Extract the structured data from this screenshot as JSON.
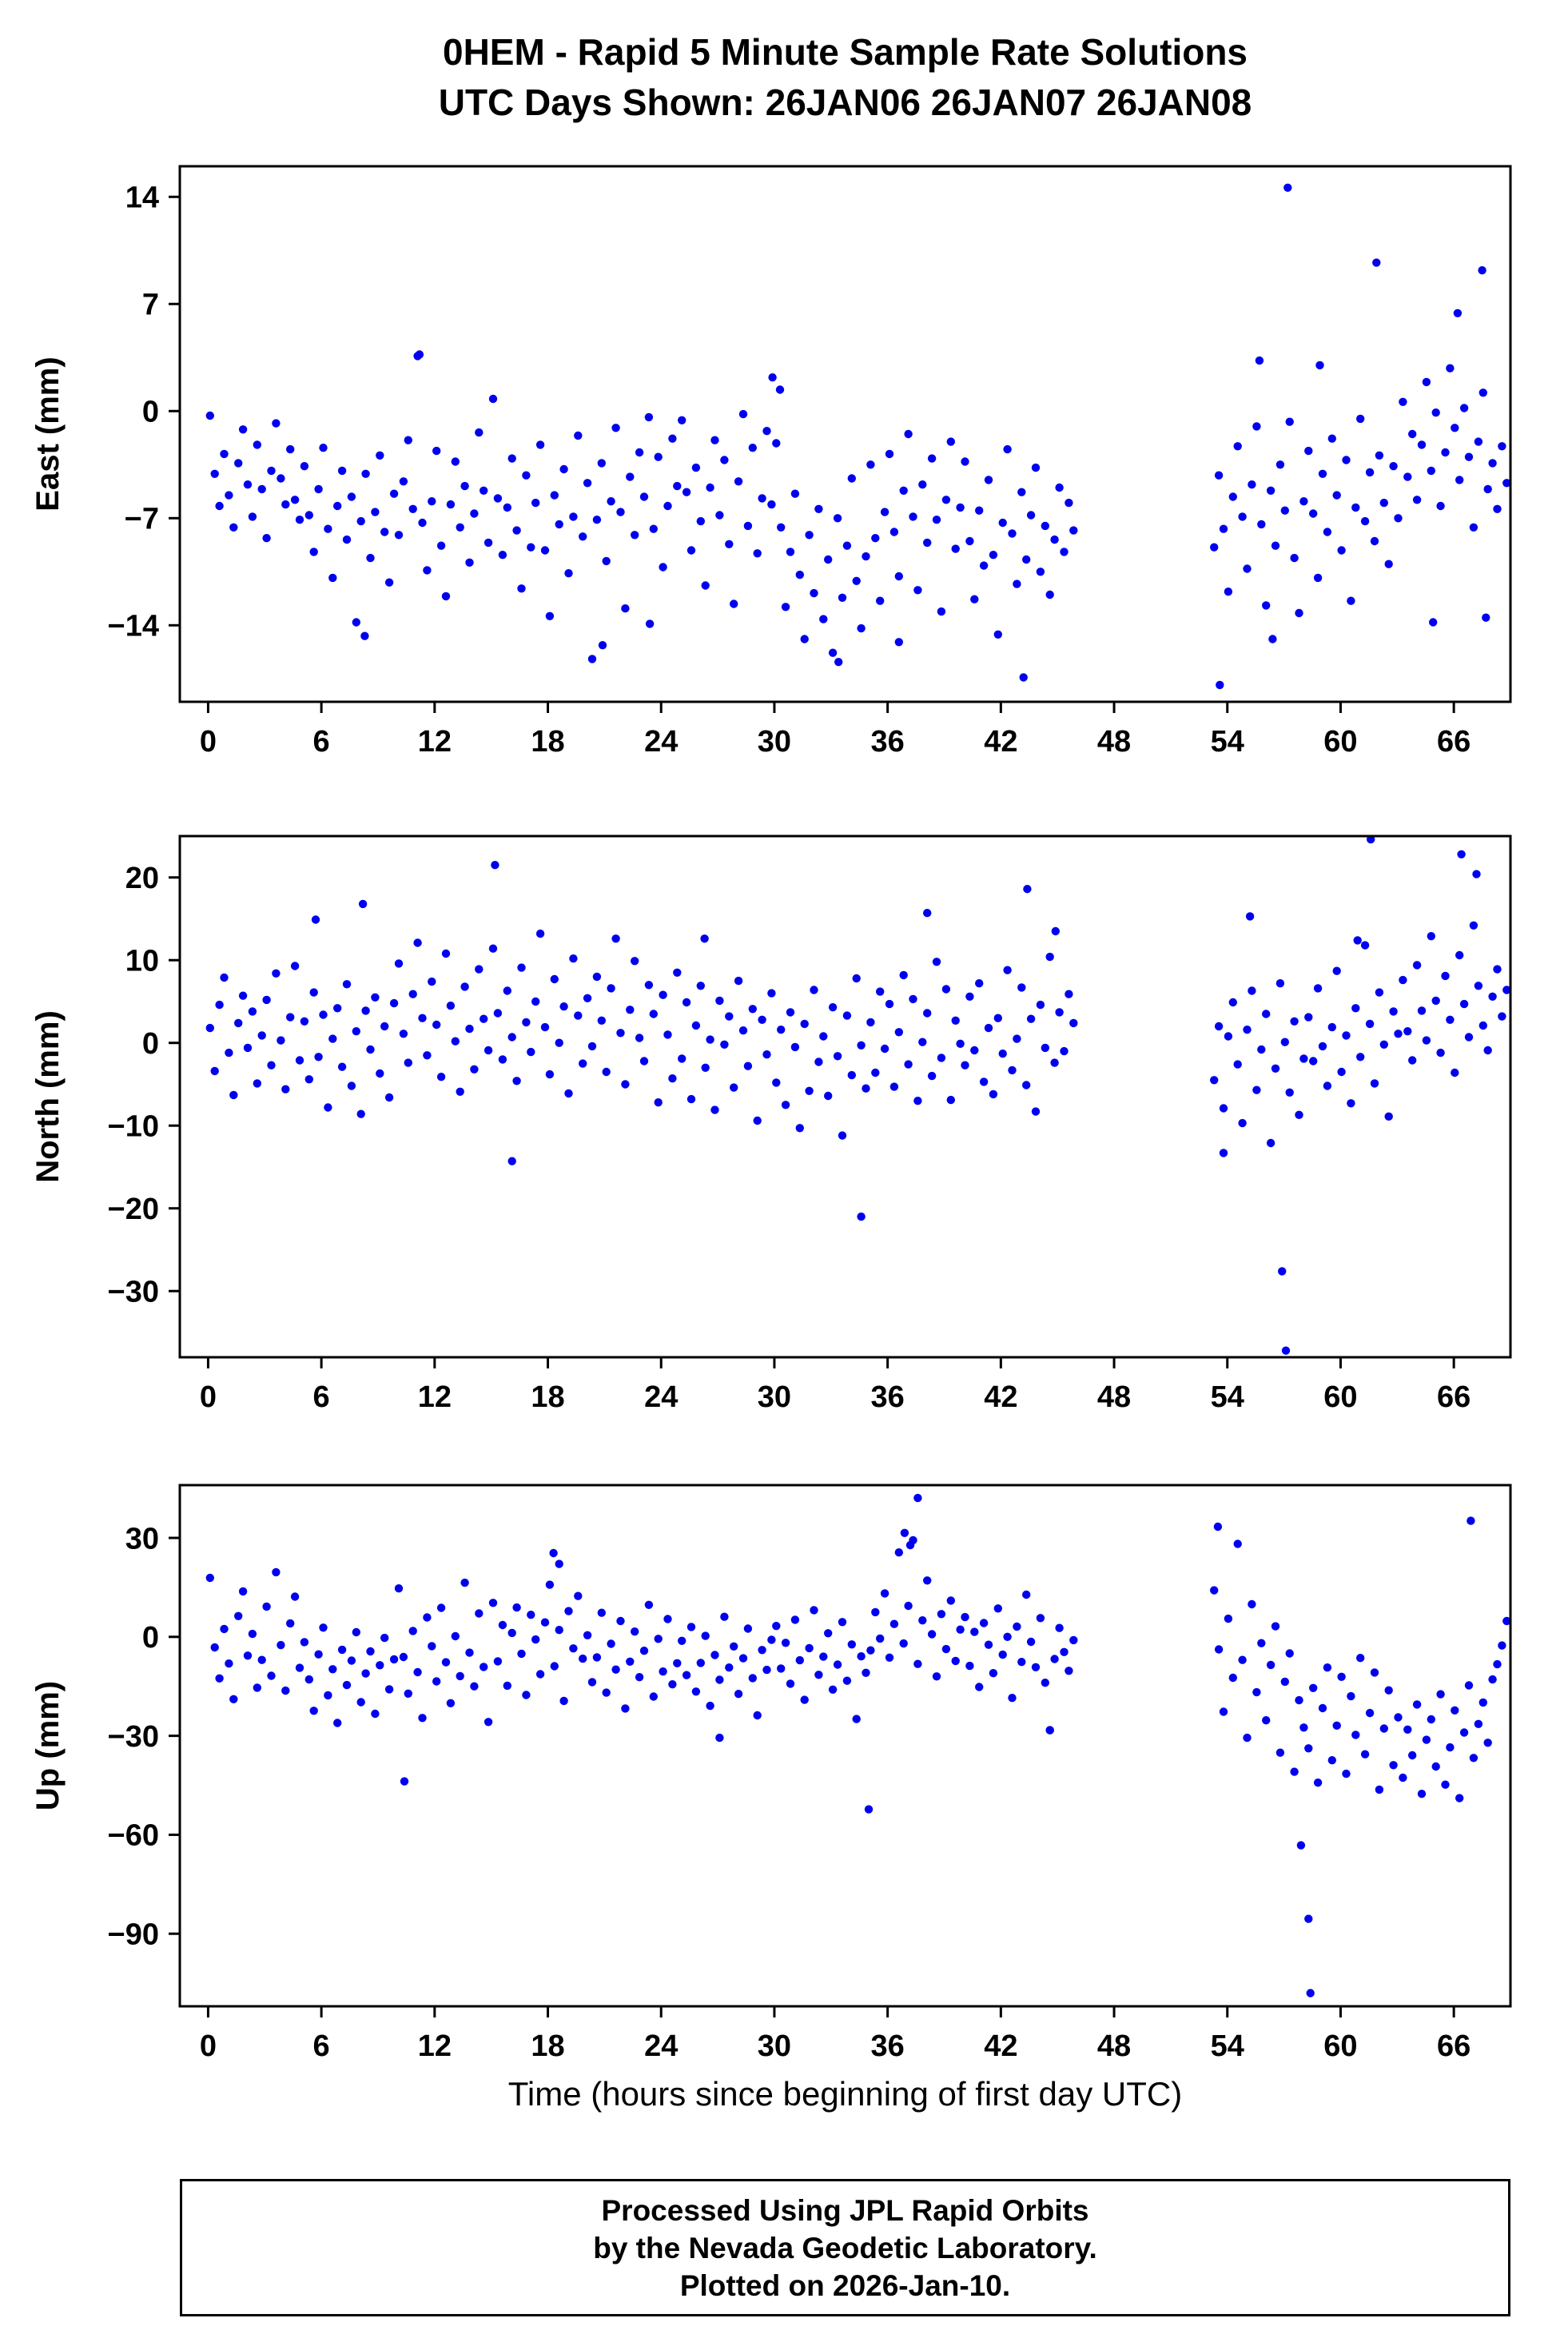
{
  "header": {
    "title_line1": "0HEM - Rapid 5 Minute Sample Rate Solutions",
    "title_line2": "UTC Days Shown:  26JAN06 26JAN07 26JAN08"
  },
  "footer": {
    "line1": "Processed Using JPL Rapid Orbits",
    "line2": "by the Nevada Geodetic Laboratory.",
    "line3": "Plotted on 2026-Jan-10."
  },
  "style": {
    "point_color": "#0000EE",
    "axis_color": "#000000",
    "background": "#ffffff"
  },
  "chart_data": [
    {
      "type": "scatter",
      "title": "",
      "ylabel": "East (mm)",
      "xlabel": "",
      "xlim": [
        -1.5,
        69
      ],
      "ylim": [
        -19,
        16
      ],
      "xticks": [
        0,
        6,
        12,
        18,
        24,
        30,
        36,
        42,
        48,
        54,
        60,
        66
      ],
      "yticks": [
        14,
        7,
        0,
        -7,
        -14
      ],
      "grid": false,
      "marker": {
        "color": "#0000EE",
        "radius": 5.2
      },
      "segments": [
        {
          "x0": 0.1,
          "dx": 0.25,
          "y": [
            -0.3,
            -4.1,
            -6.2,
            -2.8,
            -5.5,
            -7.6,
            -3.4,
            -1.2,
            -4.8,
            -6.9,
            -2.2,
            -5.1,
            -8.3,
            -3.9,
            -0.8,
            -4.4,
            -6.1,
            -2.5,
            -5.8,
            -7.1,
            -3.6,
            -6.8,
            -9.2,
            -5.1,
            -2.4,
            -7.7,
            -10.9,
            -6.2,
            -3.9,
            -8.4,
            -5.6,
            -13.8,
            -7.2,
            -4.1,
            -9.6,
            -6.6,
            -2.9,
            -7.9,
            -11.2,
            -5.4,
            -8.1,
            -4.6,
            -1.9,
            -6.4,
            3.6,
            -7.3,
            -10.4,
            -5.9,
            -2.6,
            -8.8,
            -12.1,
            -6.1,
            -3.3,
            -7.6,
            -4.9,
            -9.9,
            -6.7,
            -1.4,
            -5.2,
            -8.6,
            0.8,
            -5.7,
            -9.4,
            -6.3,
            -3.1,
            -7.8,
            -11.6,
            -4.2,
            -8.9,
            -6.0,
            -2.2,
            -9.1,
            -13.4,
            -5.5,
            -7.4,
            -3.8,
            -10.6,
            -6.9,
            -1.6,
            -8.2,
            -4.7,
            -16.2,
            -7.1,
            -3.4,
            -9.8,
            -5.9,
            -1.1,
            -6.6,
            -12.9,
            -4.3,
            -8.1,
            -2.7,
            -5.6,
            -0.4,
            -7.7,
            -3.0,
            -10.2,
            -6.2,
            -1.8,
            -4.9,
            -0.6,
            -5.3,
            -9.1,
            -3.7,
            -7.2,
            -11.4,
            -5.0,
            -1.9,
            -6.8,
            -3.2,
            -8.7,
            -12.6,
            -4.6,
            -0.2,
            -7.5,
            -2.4,
            -9.3,
            -5.7,
            -1.3,
            -6.1,
            -2.1,
            -7.6,
            -12.8,
            -9.2,
            -5.4,
            -10.7,
            -14.9,
            -8.1,
            -11.9,
            -6.4,
            -13.6,
            -9.7,
            -15.8,
            -7.0,
            -12.2,
            -8.8,
            -4.4,
            -11.1,
            -14.2,
            -9.5,
            -3.5,
            -8.3,
            -12.4,
            -6.6,
            -2.8,
            -7.9,
            -10.8,
            -5.2,
            -1.5,
            -6.9,
            -11.7,
            -4.8,
            -8.6,
            -3.1,
            -7.1,
            -13.1,
            -5.8,
            -2.0,
            -9.0,
            -6.3,
            -3.3,
            -8.5,
            -12.3,
            -6.5,
            -10.1,
            -4.5,
            -9.4,
            -14.6,
            -7.3,
            -2.5,
            -8.0,
            -11.3,
            -5.3,
            -9.7,
            -6.8,
            -3.7,
            -10.5,
            -7.5,
            -12.0,
            -8.4,
            -5.0,
            -9.2,
            -6.0,
            -7.8
          ]
        },
        {
          "x0": 53.3,
          "dx": 0.25,
          "y": [
            -8.9,
            -4.2,
            -7.7,
            -11.8,
            -5.6,
            -2.3,
            -6.9,
            -10.3,
            -4.8,
            -1.0,
            -7.4,
            -12.7,
            -5.2,
            -8.8,
            -3.5,
            -6.5,
            -0.7,
            -9.6,
            -13.2,
            -5.9,
            -2.6,
            -6.7,
            -10.9,
            -4.1,
            -7.9,
            -1.8,
            -5.5,
            -9.1,
            -3.2,
            -12.4,
            -6.3,
            -0.5,
            -7.2,
            -4.0,
            -8.5,
            -2.9,
            -6.0,
            -10.0,
            -3.6,
            -7.0,
            0.6,
            -4.3,
            -1.5,
            -5.8,
            -2.2,
            1.9,
            -3.9,
            -0.1,
            -6.2,
            -2.7,
            2.8,
            -1.1,
            -4.5,
            0.2,
            -3.0,
            -7.6,
            -2.0,
            1.2,
            -5.1,
            -3.4,
            -6.4,
            -2.3,
            -4.7
          ]
        }
      ],
      "outliers": [
        [
          57.2,
          14.6
        ],
        [
          61.9,
          9.7
        ],
        [
          67.5,
          9.2
        ],
        [
          66.2,
          6.4
        ],
        [
          55.7,
          3.3
        ],
        [
          58.9,
          3.0
        ],
        [
          29.9,
          2.2
        ],
        [
          30.3,
          1.4
        ],
        [
          11.2,
          3.7
        ],
        [
          43.2,
          -17.4
        ],
        [
          53.6,
          -17.9
        ],
        [
          64.9,
          -13.8
        ],
        [
          67.7,
          -13.5
        ],
        [
          20.9,
          -15.3
        ],
        [
          33.4,
          -16.4
        ],
        [
          8.3,
          -14.7
        ],
        [
          23.4,
          -13.9
        ],
        [
          36.6,
          -15.1
        ],
        [
          56.4,
          -14.9
        ]
      ]
    },
    {
      "type": "scatter",
      "title": "",
      "ylabel": "North (mm)",
      "xlabel": "",
      "xlim": [
        -1.5,
        69
      ],
      "ylim": [
        -38,
        25
      ],
      "xticks": [
        0,
        6,
        12,
        18,
        24,
        30,
        36,
        42,
        48,
        54,
        60,
        66
      ],
      "yticks": [
        20,
        10,
        0,
        -10,
        -20,
        -30
      ],
      "grid": false,
      "marker": {
        "color": "#0000EE",
        "radius": 5.2
      },
      "segments": [
        {
          "x0": 0.1,
          "dx": 0.25,
          "y": [
            1.8,
            -3.4,
            4.6,
            7.9,
            -1.2,
            -6.3,
            2.4,
            5.7,
            -0.6,
            3.8,
            -4.9,
            0.9,
            5.2,
            -2.7,
            8.4,
            0.3,
            -5.6,
            3.1,
            9.3,
            -2.1,
            2.6,
            -4.4,
            6.1,
            -1.7,
            3.4,
            -7.8,
            0.5,
            4.2,
            -2.9,
            7.1,
            -5.2,
            1.4,
            -8.6,
            3.9,
            -0.8,
            5.5,
            -3.7,
            2.0,
            -6.6,
            4.8,
            9.6,
            1.1,
            -2.4,
            5.9,
            12.1,
            3.0,
            -1.5,
            7.4,
            2.2,
            -4.1,
            10.8,
            4.5,
            0.2,
            -5.9,
            6.8,
            1.7,
            -3.2,
            8.9,
            2.9,
            -0.9,
            11.4,
            3.6,
            -2.0,
            6.3,
            0.7,
            -4.6,
            9.1,
            2.5,
            -1.1,
            5.0,
            13.2,
            1.9,
            -3.8,
            7.7,
            0.0,
            4.4,
            -6.1,
            10.2,
            3.3,
            -2.5,
            5.4,
            -0.4,
            8.0,
            2.7,
            -3.5,
            6.6,
            12.6,
            1.2,
            -5.0,
            4.0,
            9.9,
            0.6,
            -2.2,
            7.0,
            3.5,
            -7.2,
            5.8,
            1.0,
            -4.3,
            8.5,
            -1.9,
            4.9,
            -6.8,
            2.1,
            6.9,
            -3.0,
            0.4,
            -8.1,
            5.1,
            -0.2,
            3.2,
            -5.4,
            7.5,
            1.5,
            -2.8,
            4.1,
            -9.4,
            2.8,
            -1.4,
            6.0,
            -4.8,
            1.6,
            -7.5,
            3.7,
            -0.5,
            -10.3,
            2.3,
            -5.8,
            6.4,
            -2.3,
            0.8,
            -6.4,
            4.3,
            -1.6,
            -11.2,
            3.3,
            -3.9,
            7.8,
            -0.3,
            -5.5,
            2.5,
            -3.6,
            6.2,
            -0.7,
            4.7,
            -5.3,
            1.3,
            8.2,
            -2.6,
            5.3,
            -7.0,
            0.1,
            3.6,
            -4.0,
            9.8,
            -1.8,
            6.5,
            -6.9,
            2.7,
            -0.1,
            -2.7,
            5.6,
            -0.9,
            7.2,
            -4.7,
            1.8,
            -6.2,
            3.0,
            -1.3,
            8.8,
            -3.3,
            0.5,
            6.7,
            -5.1,
            2.9,
            -8.3,
            4.6,
            -0.6,
            10.4,
            -2.4,
            3.7,
            -1.0,
            5.9,
            2.4
          ]
        },
        {
          "x0": 53.3,
          "dx": 0.25,
          "y": [
            -4.5,
            2.0,
            -7.9,
            0.8,
            4.9,
            -2.6,
            -9.7,
            1.6,
            6.3,
            -5.7,
            -0.8,
            3.5,
            -12.1,
            -3.1,
            7.2,
            0.1,
            -6.0,
            2.6,
            -8.7,
            -1.9,
            3.1,
            -2.2,
            6.6,
            -0.4,
            -5.2,
            1.9,
            8.7,
            -3.5,
            0.9,
            -7.3,
            4.2,
            -1.7,
            11.8,
            2.3,
            -4.9,
            6.1,
            -0.2,
            -8.9,
            3.8,
            1.1,
            7.6,
            1.4,
            -2.1,
            9.4,
            3.9,
            0.3,
            12.9,
            5.1,
            -1.2,
            8.1,
            2.8,
            -3.6,
            10.6,
            4.7,
            0.7,
            14.2,
            6.9,
            2.1,
            -0.9,
            5.6,
            8.9,
            3.2,
            6.4
          ]
        }
      ],
      "outliers": [
        [
          15.2,
          21.5
        ],
        [
          8.2,
          16.8
        ],
        [
          5.7,
          14.9
        ],
        [
          34.6,
          -21.0
        ],
        [
          56.9,
          -27.6
        ],
        [
          57.1,
          -37.2
        ],
        [
          61.6,
          24.6
        ],
        [
          66.4,
          22.8
        ],
        [
          67.2,
          20.4
        ],
        [
          43.4,
          18.6
        ],
        [
          38.1,
          15.7
        ],
        [
          26.3,
          12.6
        ],
        [
          16.1,
          -14.3
        ],
        [
          53.8,
          -13.3
        ],
        [
          60.9,
          12.4
        ],
        [
          55.2,
          15.3
        ],
        [
          44.9,
          13.5
        ]
      ]
    },
    {
      "type": "scatter",
      "title": "",
      "ylabel": "Up (mm)",
      "xlabel": "Time (hours since beginning of first day UTC)",
      "xlim": [
        -1.5,
        69
      ],
      "ylim": [
        -112,
        46
      ],
      "xticks": [
        0,
        6,
        12,
        18,
        24,
        30,
        36,
        42,
        48,
        54,
        60,
        66
      ],
      "yticks": [
        30,
        0,
        -30,
        -60,
        -90
      ],
      "grid": false,
      "marker": {
        "color": "#0000EE",
        "radius": 5.2
      },
      "segments": [
        {
          "x0": 0.1,
          "dx": 0.25,
          "y": [
            17.9,
            -3.2,
            -12.6,
            2.4,
            -8.1,
            -18.9,
            6.3,
            13.8,
            -5.7,
            0.9,
            -15.4,
            -7.0,
            9.2,
            -11.8,
            19.6,
            -2.5,
            -16.3,
            4.1,
            12.2,
            -9.4,
            -1.6,
            -12.9,
            -22.4,
            -5.3,
            2.8,
            -17.7,
            -9.8,
            -26.1,
            -3.9,
            -14.6,
            -7.2,
            1.4,
            -19.8,
            -11.1,
            -4.4,
            -23.3,
            -8.6,
            -0.3,
            -15.9,
            -6.8,
            14.7,
            -6.1,
            -17.2,
            1.8,
            -10.7,
            -24.6,
            5.9,
            -2.8,
            -13.5,
            8.8,
            -7.7,
            -20.1,
            0.2,
            -11.9,
            16.4,
            -4.8,
            -15.0,
            7.1,
            -9.1,
            -25.8,
            10.3,
            -7.4,
            3.6,
            -14.8,
            1.2,
            8.9,
            -5.1,
            -17.6,
            6.7,
            -0.8,
            -11.3,
            4.4,
            15.8,
            -8.9,
            2.1,
            -19.4,
            7.8,
            -3.5,
            12.4,
            -6.6,
            0.5,
            -13.7,
            -6.2,
            7.3,
            -16.9,
            -2.1,
            -9.9,
            4.8,
            -21.7,
            -7.5,
            1.6,
            -12.2,
            -4.2,
            9.7,
            -18.1,
            -0.6,
            -10.5,
            5.4,
            -14.4,
            -8.0,
            -1.2,
            -11.6,
            3.0,
            -16.6,
            -7.9,
            0.3,
            -20.9,
            -5.5,
            -13.0,
            6.1,
            -9.3,
            -2.9,
            -17.3,
            -6.5,
            2.5,
            -12.5,
            -23.8,
            -4.0,
            -10.0,
            -0.9,
            3.3,
            -9.6,
            -1.8,
            -14.2,
            5.2,
            -7.1,
            -19.1,
            -3.4,
            8.1,
            -11.5,
            -6.0,
            1.1,
            -16.0,
            -8.4,
            4.5,
            -13.3,
            -2.3,
            -24.9,
            -5.9,
            -10.9,
            -4.1,
            7.5,
            -0.5,
            13.2,
            -6.3,
            3.9,
            25.6,
            -2.0,
            9.4,
            29.3,
            -8.2,
            5.0,
            17.1,
            0.8,
            -12.0,
            6.9,
            -3.7,
            11.0,
            -7.3,
            2.2,
            6.0,
            -8.8,
            1.5,
            -15.2,
            4.2,
            -2.4,
            -11.0,
            8.6,
            -5.4,
            0.0,
            -18.5,
            3.1,
            -7.6,
            12.8,
            -1.5,
            -9.2,
            5.7,
            -13.9,
            -28.3,
            -6.7,
            2.7,
            -4.6,
            -10.3,
            -1.0
          ]
        },
        {
          "x0": 53.3,
          "dx": 0.25,
          "y": [
            14.1,
            -3.8,
            -22.7,
            5.5,
            -12.4,
            28.2,
            -7.0,
            -30.6,
            9.9,
            -16.8,
            -1.9,
            -25.3,
            -8.5,
            3.2,
            -35.1,
            -13.6,
            -5.0,
            -40.9,
            -19.2,
            -27.5,
            -33.8,
            -15.5,
            -44.2,
            -21.6,
            -9.3,
            -37.4,
            -26.9,
            -12.1,
            -41.5,
            -18.0,
            -29.7,
            -6.4,
            -35.6,
            -23.1,
            -10.8,
            -46.3,
            -27.8,
            -16.2,
            -38.9,
            -24.4,
            -42.7,
            -28.1,
            -35.9,
            -20.5,
            -47.6,
            -31.2,
            -25.0,
            -39.3,
            -17.4,
            -44.8,
            -33.5,
            -22.3,
            -48.9,
            -29.0,
            -14.7,
            -36.7,
            -26.4,
            -19.9,
            -32.1,
            -12.9,
            -8.3,
            -2.6,
            4.8
          ]
        }
      ],
      "outliers": [
        [
          37.6,
          42.1
        ],
        [
          53.5,
          33.4
        ],
        [
          66.9,
          35.2
        ],
        [
          36.9,
          31.5
        ],
        [
          37.2,
          27.8
        ],
        [
          18.3,
          25.4
        ],
        [
          18.6,
          22.1
        ],
        [
          35.0,
          -52.3
        ],
        [
          10.4,
          -43.8
        ],
        [
          27.1,
          -30.6
        ],
        [
          44.6,
          -28.3
        ],
        [
          57.9,
          -63.2
        ],
        [
          58.3,
          -85.5
        ],
        [
          58.4,
          -108.0
        ]
      ]
    }
  ]
}
